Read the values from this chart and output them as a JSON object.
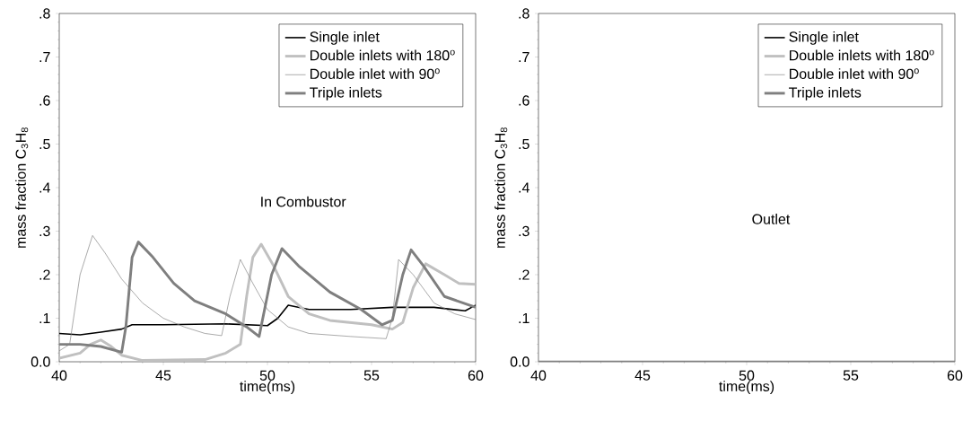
{
  "chart_data": [
    {
      "type": "line",
      "xlabel": "time(ms)",
      "ylabel": "mass fraction C$_{3}$H$_{8}$",
      "annotations": [
        "In Combustor"
      ],
      "legend": "top right",
      "grid": false,
      "xlim": [
        40,
        60
      ],
      "ylim": [
        0,
        0.8
      ],
      "xticks": [
        40,
        45,
        50,
        55,
        60
      ],
      "yticks": [
        {
          "value": 0,
          "label": "0.0"
        },
        {
          "value": 0.1,
          "label": ".1"
        },
        {
          "value": 0.2,
          "label": ".2"
        },
        {
          "value": 0.3,
          "label": ".3"
        },
        {
          "value": 0.4,
          "label": ".4"
        },
        {
          "value": 0.5,
          "label": ".5"
        },
        {
          "value": 0.6,
          "label": ".6"
        },
        {
          "value": 0.7,
          "label": ".7"
        },
        {
          "value": 0.8,
          "label": ".8"
        }
      ],
      "series": [
        {
          "name": "Single inlet",
          "color": "#000000",
          "x": [
            40,
            41,
            42,
            43,
            43.5,
            45,
            48,
            50,
            50.5,
            51,
            52,
            54,
            56,
            58,
            59.5,
            60
          ],
          "values": [
            0.065,
            0.062,
            0.068,
            0.075,
            0.085,
            0.085,
            0.087,
            0.083,
            0.1,
            0.13,
            0.12,
            0.12,
            0.125,
            0.125,
            0.117,
            0.13
          ]
        },
        {
          "name": "Double inlets with 180$^{o}$",
          "color": "#c0c0c0",
          "x": [
            40,
            41,
            41.5,
            42,
            42.5,
            43,
            44,
            47,
            48,
            48.7,
            49,
            49.3,
            49.7,
            50.3,
            51,
            52,
            53,
            55,
            56,
            56.5,
            57,
            57.6,
            58.5,
            59.2,
            60
          ],
          "values": [
            0.008,
            0.02,
            0.04,
            0.05,
            0.035,
            0.015,
            0.003,
            0.005,
            0.02,
            0.04,
            0.15,
            0.24,
            0.27,
            0.22,
            0.15,
            0.11,
            0.095,
            0.085,
            0.075,
            0.09,
            0.17,
            0.225,
            0.2,
            0.18,
            0.178
          ]
        },
        {
          "name": "Double inlet with 90$^{o}$",
          "color": "#808080",
          "x": [
            40,
            40.5,
            41,
            41.6,
            42.2,
            43,
            44,
            45,
            46,
            47,
            47.8,
            48.2,
            48.7,
            49.3,
            50,
            51,
            52,
            54,
            55.7,
            56,
            56.3,
            57,
            58,
            59,
            60
          ],
          "values": [
            0.025,
            0.04,
            0.2,
            0.29,
            0.25,
            0.19,
            0.135,
            0.1,
            0.08,
            0.065,
            0.06,
            0.15,
            0.235,
            0.18,
            0.12,
            0.08,
            0.065,
            0.058,
            0.053,
            0.1,
            0.235,
            0.2,
            0.135,
            0.11,
            0.097
          ]
        },
        {
          "name": "Triple inlets",
          "color": "#7f7f7f",
          "x": [
            40,
            41,
            42,
            43,
            43.2,
            43.5,
            43.8,
            44.5,
            45.5,
            46.5,
            48,
            49,
            49.6,
            50.2,
            50.7,
            51.5,
            53,
            54.5,
            55.5,
            56,
            56.5,
            56.9,
            57.5,
            58.5,
            60
          ],
          "values": [
            0.04,
            0.04,
            0.035,
            0.022,
            0.08,
            0.24,
            0.275,
            0.24,
            0.18,
            0.14,
            0.11,
            0.08,
            0.058,
            0.2,
            0.26,
            0.22,
            0.16,
            0.12,
            0.085,
            0.095,
            0.2,
            0.257,
            0.22,
            0.15,
            0.125
          ]
        }
      ]
    },
    {
      "type": "line",
      "xlabel": "time(ms)",
      "ylabel": "mass fraction C$_{3}$H$_{8}$",
      "annotations": [
        "Outlet"
      ],
      "legend": "top right",
      "grid": false,
      "xlim": [
        40,
        60
      ],
      "ylim": [
        0,
        0.8
      ],
      "xticks": [
        40,
        45,
        50,
        55,
        60
      ],
      "yticks": [
        {
          "value": 0,
          "label": "0.0"
        },
        {
          "value": 0.1,
          "label": ".1"
        },
        {
          "value": 0.2,
          "label": ".2"
        },
        {
          "value": 0.3,
          "label": ".3"
        },
        {
          "value": 0.4,
          "label": ".4"
        },
        {
          "value": 0.5,
          "label": ".5"
        },
        {
          "value": 0.6,
          "label": ".6"
        },
        {
          "value": 0.7,
          "label": ".7"
        },
        {
          "value": 0.8,
          "label": ".8"
        }
      ],
      "series": [
        {
          "name": "Single inlet",
          "color": "#000000"
        },
        {
          "name": "Double inlets with 180$^{o}$",
          "color": "#c0c0c0"
        },
        {
          "name": "Double inlet with 90$^{o}$",
          "color": "#808080"
        },
        {
          "name": "Triple inlets",
          "color": "#7f7f7f",
          "x": [
            40,
            60
          ],
          "values": [
            0,
            0
          ]
        }
      ]
    }
  ]
}
